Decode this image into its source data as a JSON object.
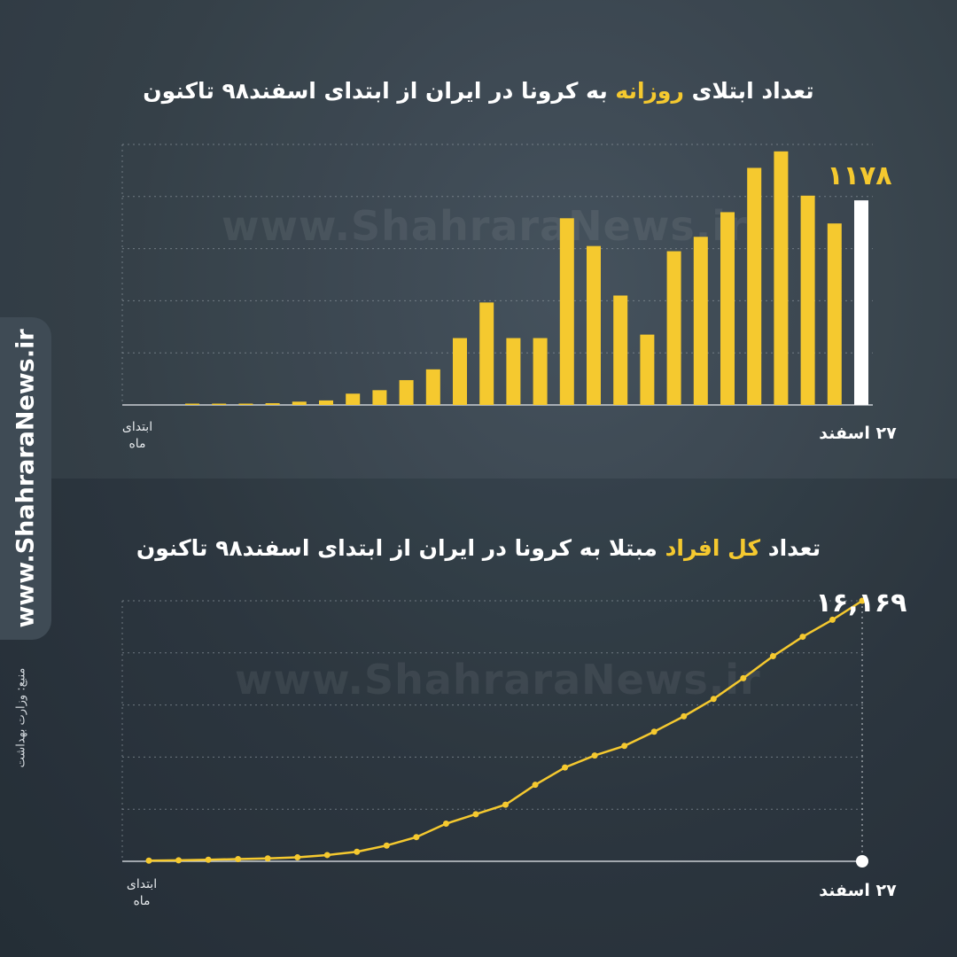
{
  "side_brand": "www.ShahraraNews.ir",
  "source": "منبع: وزارت بهداشت",
  "watermark": "www.ShahraraNews.ir",
  "colors": {
    "accent": "#f5c92f",
    "highlight_bar": "#ffffff",
    "grid": "#8a949c"
  },
  "chart_data": [
    {
      "type": "bar",
      "title_before": "تعداد ابتلای ",
      "title_highlight": "روزانه",
      "title_after": " به کرونا در ایران از ابتدای اسفند۹۸ تاکنون",
      "x_start_label_line1": "ابتدای",
      "x_start_label_line2": "ماه",
      "x_end_label": "۲۷ اسفند",
      "callout_label": "۱۱۷۸",
      "ylim": [
        0,
        1500
      ],
      "grid_lines": 5,
      "highlight_last": true,
      "values": [
        3,
        3,
        5,
        10,
        19,
        26,
        65,
        85,
        143,
        205,
        385,
        590,
        385,
        385,
        1075,
        915,
        630,
        405,
        885,
        968,
        1110,
        1365,
        1460,
        1205,
        1045,
        1178
      ]
    },
    {
      "type": "line",
      "title_before": "تعداد ",
      "title_highlight": "کل افراد",
      "title_after": " مبتلا به کرونا در ایران از ابتدای اسفند۹۸ تاکنون",
      "x_start_label_line1": "ابتدای",
      "x_start_label_line2": "ماه",
      "x_end_label": "۲۷ اسفند",
      "callout_label": "۱۶,۱۶۹",
      "ylim": [
        0,
        16169
      ],
      "grid_lines": 5,
      "values": [
        43,
        61,
        95,
        139,
        178,
        245,
        388,
        593,
        978,
        1501,
        2336,
        2922,
        3513,
        4747,
        5823,
        6566,
        7161,
        8042,
        9000,
        10075,
        11364,
        12729,
        13938,
        14991,
        16169
      ]
    }
  ]
}
